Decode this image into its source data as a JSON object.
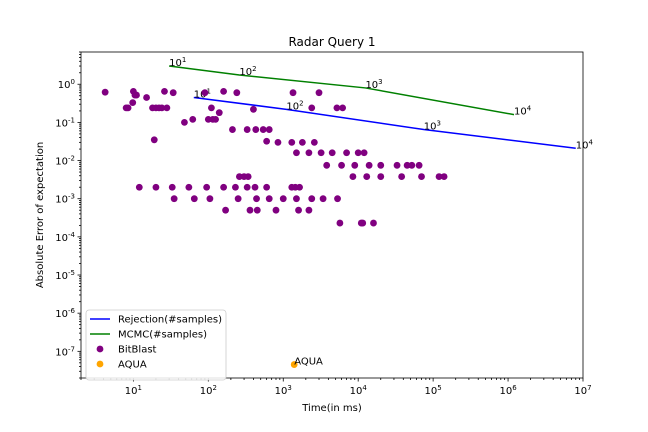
{
  "chart_data": {
    "type": "scatter",
    "title": "Radar Query 1",
    "xlabel": "Time(in ms)",
    "ylabel": "Absolute Error of expectation",
    "xscale": "log",
    "yscale": "log",
    "xlim": [
      2,
      10000000
    ],
    "ylim": [
      2e-08,
      7
    ],
    "grid": false,
    "legend_position": "bottom-left",
    "x_ticks": [
      {
        "value": 10,
        "label": "10^1"
      },
      {
        "value": 100,
        "label": "10^2"
      },
      {
        "value": 1000,
        "label": "10^3"
      },
      {
        "value": 10000,
        "label": "10^4"
      },
      {
        "value": 100000,
        "label": "10^5"
      },
      {
        "value": 1000000,
        "label": "10^6"
      },
      {
        "value": 10000000,
        "label": "10^7"
      }
    ],
    "y_ticks": [
      {
        "value": 1,
        "label": "10^0"
      },
      {
        "value": 0.1,
        "label": "10^-1"
      },
      {
        "value": 0.01,
        "label": "10^-2"
      },
      {
        "value": 0.001,
        "label": "10^-3"
      },
      {
        "value": 0.0001,
        "label": "10^-4"
      },
      {
        "value": 1e-05,
        "label": "10^-5"
      },
      {
        "value": 1e-06,
        "label": "10^-6"
      },
      {
        "value": 1e-07,
        "label": "10^-7"
      }
    ],
    "series": [
      {
        "name": "Rejection(#samples)",
        "kind": "line",
        "color": "#0000ff",
        "points": [
          [
            64,
            0.45
          ],
          [
            1100,
            0.22
          ],
          [
            75000,
            0.065
          ],
          [
            8000000,
            0.021
          ]
        ],
        "annotations": [
          {
            "text": "10^1",
            "x": 64,
            "y": 0.45
          },
          {
            "text": "10^2",
            "x": 1100,
            "y": 0.22
          },
          {
            "text": "10^3",
            "x": 75000,
            "y": 0.065
          },
          {
            "text": "10^4",
            "x": 8000000,
            "y": 0.021
          }
        ]
      },
      {
        "name": "MCMC(#samples)",
        "kind": "line",
        "color": "#008000",
        "points": [
          [
            30,
            3.0
          ],
          [
            260,
            1.75
          ],
          [
            12500,
            0.8
          ],
          [
            1200000,
            0.16
          ]
        ],
        "annotations": [
          {
            "text": "10^1",
            "x": 30,
            "y": 3.0
          },
          {
            "text": "10^2",
            "x": 260,
            "y": 1.75
          },
          {
            "text": "10^3",
            "x": 12500,
            "y": 0.8
          },
          {
            "text": "10^4",
            "x": 1200000,
            "y": 0.16
          }
        ]
      },
      {
        "name": "BitBlast",
        "kind": "scatter",
        "color": "#800080",
        "points": [
          [
            4.2,
            0.62
          ],
          [
            8,
            0.24
          ],
          [
            8.5,
            0.24
          ],
          [
            10,
            0.65
          ],
          [
            10.5,
            0.52
          ],
          [
            9.8,
            0.33
          ],
          [
            11,
            0.52
          ],
          [
            15,
            0.45
          ],
          [
            18,
            0.24
          ],
          [
            19,
            0.035
          ],
          [
            20,
            0.24
          ],
          [
            22,
            0.24
          ],
          [
            24,
            0.24
          ],
          [
            26,
            0.65
          ],
          [
            28,
            0.24
          ],
          [
            34,
            0.6
          ],
          [
            48,
            0.1
          ],
          [
            62,
            0.12
          ],
          [
            90,
            0.6
          ],
          [
            100,
            0.12
          ],
          [
            110,
            0.24
          ],
          [
            115,
            0.12
          ],
          [
            125,
            0.12
          ],
          [
            140,
            0.18
          ],
          [
            160,
            0.65
          ],
          [
            210,
            0.065
          ],
          [
            240,
            0.6
          ],
          [
            330,
            0.065
          ],
          [
            400,
            0.22
          ],
          [
            430,
            0.065
          ],
          [
            540,
            0.065
          ],
          [
            600,
            0.032
          ],
          [
            650,
            0.065
          ],
          [
            850,
            0.03
          ],
          [
            1350,
            0.6
          ],
          [
            1300,
            0.03
          ],
          [
            1500,
            0.016
          ],
          [
            1800,
            0.03
          ],
          [
            2200,
            0.016
          ],
          [
            2400,
            0.24
          ],
          [
            2600,
            0.03
          ],
          [
            3000,
            0.6
          ],
          [
            3200,
            0.016
          ],
          [
            3800,
            0.0075
          ],
          [
            4500,
            0.016
          ],
          [
            5200,
            0.24
          ],
          [
            6200,
            0.24
          ],
          [
            6000,
            0.0075
          ],
          [
            7000,
            0.016
          ],
          [
            8500,
            0.0038
          ],
          [
            9000,
            0.0075
          ],
          [
            10000,
            0.016
          ],
          [
            12000,
            0.016
          ],
          [
            13000,
            0.0038
          ],
          [
            14000,
            0.0075
          ],
          [
            20000,
            0.0075
          ],
          [
            20000,
            0.0038
          ],
          [
            33000,
            0.0075
          ],
          [
            38000,
            0.0038
          ],
          [
            45000,
            0.0075
          ],
          [
            52000,
            0.0075
          ],
          [
            65000,
            0.0075
          ],
          [
            70000,
            0.0038
          ],
          [
            120000,
            0.0038
          ],
          [
            140000,
            0.0038
          ],
          [
            12,
            0.002
          ],
          [
            20,
            0.002
          ],
          [
            33,
            0.002
          ],
          [
            35,
            0.001
          ],
          [
            55,
            0.002
          ],
          [
            65,
            0.001
          ],
          [
            95,
            0.002
          ],
          [
            105,
            0.001
          ],
          [
            160,
            0.002
          ],
          [
            170,
            0.0005
          ],
          [
            230,
            0.002
          ],
          [
            260,
            0.0038
          ],
          [
            250,
            0.001
          ],
          [
            300,
            0.0038
          ],
          [
            340,
            0.0038
          ],
          [
            330,
            0.002
          ],
          [
            360,
            0.0005
          ],
          [
            420,
            0.002
          ],
          [
            440,
            0.001
          ],
          [
            450,
            0.0005
          ],
          [
            600,
            0.002
          ],
          [
            650,
            0.001
          ],
          [
            800,
            0.0005
          ],
          [
            1000,
            0.001
          ],
          [
            1300,
            0.002
          ],
          [
            1450,
            0.002
          ],
          [
            1650,
            0.002
          ],
          [
            1500,
            0.001
          ],
          [
            1600,
            0.0005
          ],
          [
            2200,
            0.0005
          ],
          [
            2400,
            0.001
          ],
          [
            3400,
            0.001
          ],
          [
            5300,
            0.001
          ],
          [
            5700,
            0.00023
          ],
          [
            11000,
            0.00023
          ],
          [
            11500,
            0.00023
          ],
          [
            16000,
            0.00023
          ]
        ]
      },
      {
        "name": "AQUA",
        "kind": "scatter",
        "color": "#ffa500",
        "points": [
          [
            1400,
            4.5e-08
          ]
        ],
        "annotations": [
          {
            "text": "AQUA",
            "x": 1400,
            "y": 4.5e-08
          }
        ]
      }
    ]
  }
}
